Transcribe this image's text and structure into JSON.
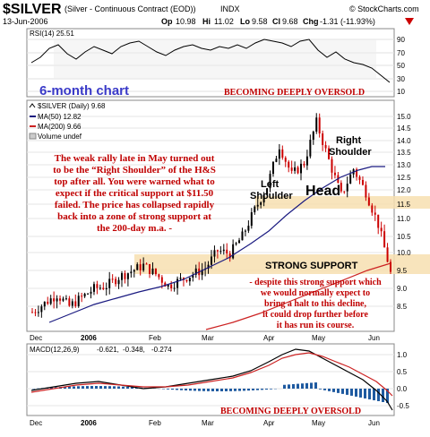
{
  "header": {
    "symbol": "$SILVER",
    "description": "(Silver - Continuous Contract (EOD))",
    "exchange": "INDX",
    "date": "13-Jun-2006",
    "op_label": "Op",
    "op": "10.98",
    "hi_label": "Hi",
    "hi": "11.02",
    "lo_label": "Lo",
    "lo": "9.58",
    "cl_label": "Cl",
    "cl": "9.68",
    "chg_label": "Chg",
    "chg": "-1.31 (-11.93%)",
    "credit": "© StockCharts.com"
  },
  "colors": {
    "up": "#000000",
    "down": "#cc0000",
    "ma50": "#1a1a80",
    "ma200": "#cc2222",
    "panel_bg": "#ffffff",
    "grid": "#dddddd",
    "band": "#f7dfb0",
    "macd_hist": "#1e5aa0",
    "annotation": "#c00000",
    "blue_title": "#3a3ac8"
  },
  "rsi_panel": {
    "label": "RSI(14) 25.51",
    "ticks": [
      "90",
      "70",
      "50",
      "30",
      "10"
    ],
    "caption": "6-month chart",
    "note": "BECOMING DEEPLY OVERSOLD"
  },
  "price_panel": {
    "legend_title": "$SILVER (Daily) 9.68",
    "legend_ma50": "MA(50) 12.82",
    "legend_ma200": "MA(200) 9.66",
    "legend_volume": "Volume undef",
    "y_ticks": [
      "15.0",
      "14.5",
      "14.0",
      "13.5",
      "13.0",
      "12.5",
      "12.0",
      "11.5",
      "11.0",
      "10.5",
      "10.0",
      "9.5",
      "9.0",
      "8.5"
    ],
    "support_label": "STRONG SUPPORT",
    "commentary": [
      "The weak rally late in May turned out",
      "to be the “Right Shoulder” of the H&S",
      "top after all. You were warned what to",
      "expect if the critical support at $11.50",
      "failed. The price has collapsed rapidly",
      "back into a zone of strong support at",
      "the 200-day m.a. -"
    ],
    "support_commentary": [
      "- despite this strong support which",
      "we would normally expect to",
      "bring a halt to this decline,",
      "it could drop further before",
      "it has run its course."
    ],
    "left_shoulder": [
      "Left",
      "Shoulder"
    ],
    "right_shoulder": [
      "Right",
      "Shoulder"
    ],
    "head": "Head",
    "x_labels": [
      "Dec",
      "2006",
      "Feb",
      "Mar",
      "Apr",
      "May",
      "Jun"
    ]
  },
  "macd_panel": {
    "label_name": "MACD(12,26,9)",
    "label_macd": "-0.621,",
    "label_signal": "-0.348,",
    "label_hist": "-0.274",
    "ticks": [
      "1.0",
      "0.5",
      "0.0",
      "-0.5"
    ],
    "note": "BECOMING DEEPLY OVERSOLD",
    "x_labels": [
      "Dec",
      "2006",
      "Feb",
      "Mar",
      "Apr",
      "May",
      "Jun"
    ]
  },
  "chart_data": {
    "type": "line",
    "title": "$SILVER (Silver - Continuous Contract (EOD)) INDX",
    "date_range": [
      "Dec 2005",
      "13-Jun-2006"
    ],
    "price": {
      "y_axis": [
        8.5,
        15.0
      ],
      "close_points": [
        {
          "x": "Dec",
          "y": 8.3
        },
        {
          "x": "Dec",
          "y": 8.6
        },
        {
          "x": "Dec",
          "y": 8.9
        },
        {
          "x": "Dec",
          "y": 8.5
        },
        {
          "x": "2006",
          "y": 8.8
        },
        {
          "x": "2006",
          "y": 9.1
        },
        {
          "x": "Jan",
          "y": 9.2
        },
        {
          "x": "Jan",
          "y": 9.5
        },
        {
          "x": "Jan",
          "y": 9.7
        },
        {
          "x": "Jan",
          "y": 9.9
        },
        {
          "x": "Feb",
          "y": 9.6
        },
        {
          "x": "Feb",
          "y": 9.2
        },
        {
          "x": "Feb",
          "y": 9.4
        },
        {
          "x": "Feb",
          "y": 9.6
        },
        {
          "x": "Mar",
          "y": 9.8
        },
        {
          "x": "Mar",
          "y": 10.4
        },
        {
          "x": "Mar",
          "y": 10.3
        },
        {
          "x": "Mar",
          "y": 10.9
        },
        {
          "x": "Apr",
          "y": 11.8
        },
        {
          "x": "Apr",
          "y": 12.6
        },
        {
          "x": "Apr",
          "y": 14.0
        },
        {
          "x": "Apr",
          "y": 13.0
        },
        {
          "x": "May",
          "y": 13.4
        },
        {
          "x": "May",
          "y": 14.8
        },
        {
          "x": "May",
          "y": 13.5
        },
        {
          "x": "May",
          "y": 12.3
        },
        {
          "x": "May",
          "y": 13.2
        },
        {
          "x": "Jun",
          "y": 12.4
        },
        {
          "x": "Jun",
          "y": 11.3
        },
        {
          "x": "Jun",
          "y": 9.68
        }
      ],
      "ma50_last": 12.82,
      "ma200_last": 9.66,
      "support_zone": [
        9.5,
        9.9
      ],
      "neckline_zone": [
        11.5,
        11.8
      ]
    },
    "rsi": {
      "y_axis": [
        10,
        90
      ],
      "last": 25.51,
      "levels": [
        30,
        70
      ]
    },
    "macd": {
      "y_axis": [
        -0.5,
        1.0
      ],
      "macd": -0.621,
      "signal": -0.348,
      "histogram": -0.274
    }
  }
}
